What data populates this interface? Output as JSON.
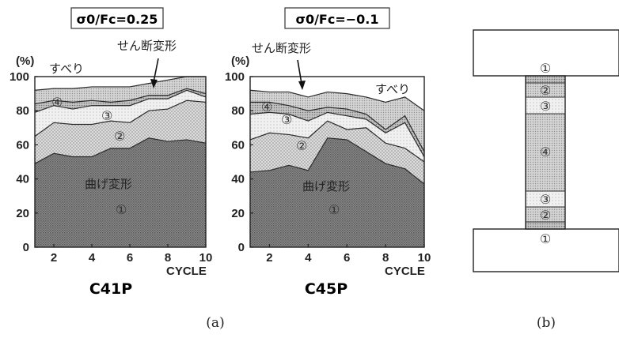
{
  "figure": {
    "caption_a": "(a)",
    "caption_b": "(b)"
  },
  "chart_data": [
    {
      "type": "area",
      "title": "σ0/Fc=0.25",
      "subtitle": "C41P",
      "xlabel": "CYCLE",
      "ylabel": "(%)",
      "xlim": [
        1,
        10
      ],
      "ylim": [
        0,
        100
      ],
      "xticks": [
        2,
        4,
        6,
        8,
        10
      ],
      "yticks": [
        0,
        20,
        40,
        60,
        80,
        100
      ],
      "x": [
        1,
        2,
        3,
        4,
        5,
        6,
        7,
        8,
        9,
        10
      ],
      "boundaries": [
        {
          "name": "①",
          "values": [
            49,
            55,
            53,
            53,
            58,
            58,
            64,
            62,
            63,
            61
          ]
        },
        {
          "name": "②",
          "values": [
            65,
            73,
            72,
            72,
            74,
            73,
            80,
            81,
            86,
            85
          ]
        },
        {
          "name": "③",
          "values": [
            79,
            83,
            81,
            83,
            83,
            83,
            87,
            87,
            92,
            88
          ]
        },
        {
          "name": "④",
          "values": [
            84,
            86,
            85,
            86,
            85,
            86,
            89,
            89,
            93,
            90
          ]
        },
        {
          "name": "せん断変形",
          "values": [
            92,
            93,
            93,
            94,
            94,
            94,
            96,
            98,
            100,
            100
          ]
        }
      ],
      "labels": {
        "slip": "すべり",
        "shear": "せん断変形",
        "bending": "曲げ変形",
        "c1": "①",
        "c2": "②",
        "c3": "③",
        "c4": "④"
      }
    },
    {
      "type": "area",
      "title": "σ0/Fc=−0.1",
      "subtitle": "C45P",
      "xlabel": "CYCLE",
      "ylabel": "(%)",
      "xlim": [
        1,
        10
      ],
      "ylim": [
        0,
        100
      ],
      "xticks": [
        2,
        4,
        6,
        8,
        10
      ],
      "yticks": [
        0,
        20,
        40,
        60,
        80,
        100
      ],
      "x": [
        1,
        2,
        3,
        4,
        5,
        6,
        7,
        8,
        9,
        10
      ],
      "boundaries": [
        {
          "name": "①",
          "values": [
            44,
            45,
            48,
            45,
            64,
            63,
            56,
            49,
            46,
            37
          ]
        },
        {
          "name": "②",
          "values": [
            63,
            67,
            66,
            64,
            74,
            69,
            70,
            61,
            58,
            50
          ]
        },
        {
          "name": "③",
          "values": [
            78,
            79,
            78,
            74,
            79,
            77,
            75,
            67,
            73,
            53
          ]
        },
        {
          "name": "④",
          "values": [
            85,
            85,
            83,
            80,
            82,
            81,
            78,
            69,
            77,
            56
          ]
        },
        {
          "name": "せん断変形",
          "values": [
            92,
            91,
            91,
            88,
            91,
            90,
            88,
            85,
            88,
            80
          ]
        }
      ],
      "labels": {
        "slip": "すべり",
        "shear": "せん断変形",
        "bending": "曲げ変形",
        "c1": "①",
        "c2": "②",
        "c3": "③",
        "c4": "④"
      }
    }
  ],
  "column_diagram": {
    "zones": [
      "①",
      "②",
      "③",
      "④",
      "③",
      "②",
      "①"
    ],
    "zone_heights_mm": [
      0,
      5,
      12,
      55,
      14,
      8,
      0
    ]
  }
}
